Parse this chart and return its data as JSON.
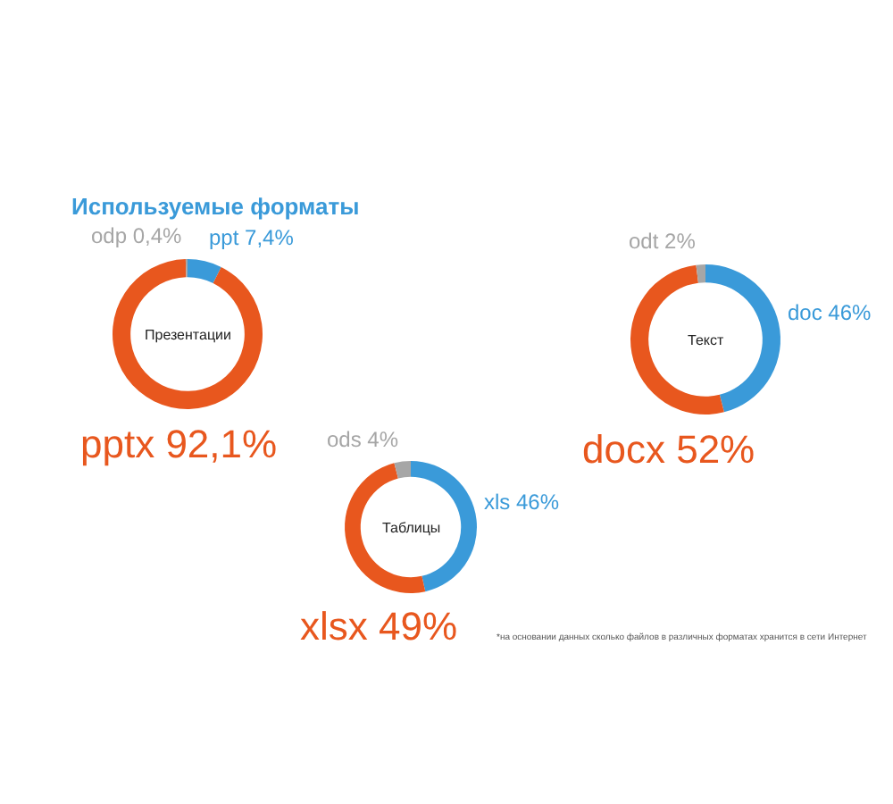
{
  "chart_data": [
    {
      "type": "donut",
      "title": "Используемые форматы",
      "categories": [
        "ppt",
        "pptx",
        "odp"
      ],
      "values": [
        7.4,
        92.1,
        0.4
      ],
      "colors": [
        "#3a9ad9",
        "#e8571e",
        "#a6a6a6"
      ],
      "value_labels": [
        "7,4%",
        "92,1%",
        "0,4%"
      ],
      "annotations": [
        "Презентации"
      ]
    },
    {
      "type": "donut",
      "categories": [
        "doc",
        "docx",
        "odt"
      ],
      "values": [
        46,
        52,
        2
      ],
      "colors": [
        "#3a9ad9",
        "#e8571e",
        "#a6a6a6"
      ],
      "value_labels": [
        "46%",
        "52%",
        "2%"
      ],
      "annotations": [
        "Текст"
      ]
    },
    {
      "type": "donut",
      "categories": [
        "xls",
        "xlsx",
        "ods"
      ],
      "values": [
        46,
        49,
        4
      ],
      "colors": [
        "#3a9ad9",
        "#e8571e",
        "#a6a6a6"
      ],
      "value_labels": [
        "46%",
        "49%",
        "4%"
      ],
      "annotations": [
        "Таблицы",
        "*на основании данных сколько файлов в различных форматах хранится в сети Интернет"
      ]
    }
  ]
}
